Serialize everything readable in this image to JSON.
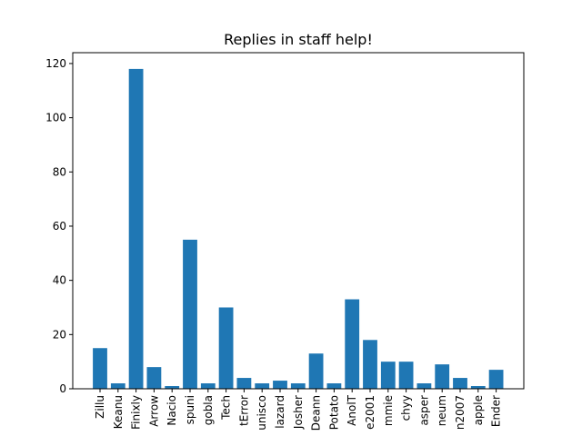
{
  "chart_data": {
    "type": "bar",
    "title": "Replies in staff help!",
    "xlabel": "",
    "ylabel": "",
    "ylim": [
      0,
      124
    ],
    "yticks": [
      0,
      20,
      40,
      60,
      80,
      100,
      120
    ],
    "bar_color": "#1f77b4",
    "grid": false,
    "categories": [
      "Zillu",
      "Keanu",
      "Finixly",
      "Arrow",
      "Nacio",
      "spuni",
      "gobla",
      "Tech",
      "tError",
      "unisco",
      "lazard",
      "Josher",
      "Deann",
      "Potato",
      "AnolT",
      "e2001",
      "mmie",
      "chyy",
      "asper",
      "neum",
      "n2007",
      "apple",
      "Ender"
    ],
    "values": [
      15,
      2,
      118,
      8,
      1,
      55,
      2,
      30,
      4,
      2,
      3,
      2,
      13,
      2,
      33,
      18,
      10,
      10,
      2,
      9,
      4,
      1,
      7
    ]
  }
}
